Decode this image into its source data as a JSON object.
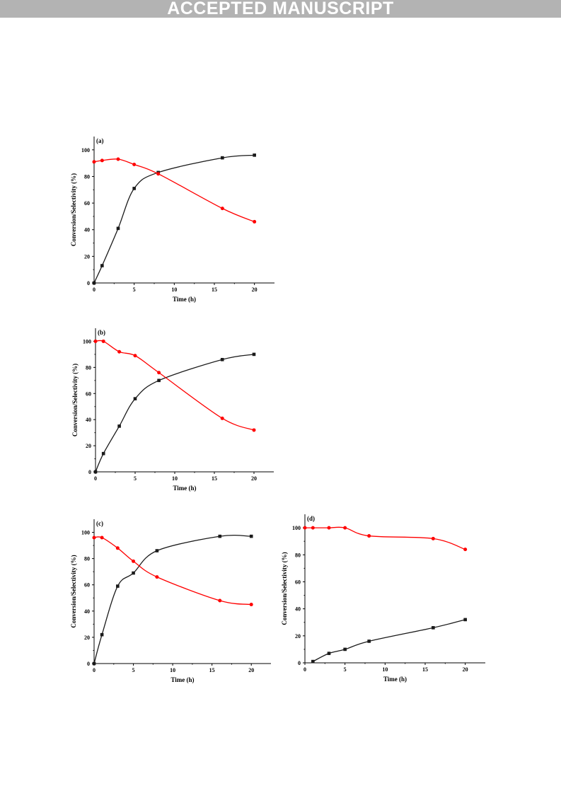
{
  "header": {
    "banner": "ACCEPTED MANUSCRIPT"
  },
  "colors": {
    "conversion": "#1a1a1a",
    "selectivity": "#ff0000",
    "banner_bg": "#b3b3b3"
  },
  "chart_data": [
    {
      "type": "line",
      "panel_label": "(a)",
      "xlabel": "Time (h)",
      "ylabel": "Conversion/Selectivity (%)",
      "xlim": [
        0,
        22.5
      ],
      "ylim": [
        0,
        110
      ],
      "xticks": [
        "0",
        "5",
        "10",
        "15",
        "20"
      ],
      "yticks": [
        "0",
        "20",
        "40",
        "60",
        "80",
        "100"
      ],
      "series": [
        {
          "x": [
            0,
            1,
            3,
            5,
            8,
            16,
            20
          ],
          "values": [
            0,
            13,
            41,
            71,
            83,
            94,
            96
          ],
          "marker": "square",
          "color": "#1a1a1a"
        },
        {
          "x": [
            0,
            1,
            3,
            5,
            8,
            16,
            20
          ],
          "values": [
            91,
            92,
            93,
            89,
            82,
            56,
            46
          ],
          "marker": "circle",
          "color": "#ff0000"
        }
      ]
    },
    {
      "type": "line",
      "panel_label": "(b)",
      "xlabel": "Time (h)",
      "ylabel": "Conversion/Selectivity (%)",
      "xlim": [
        0,
        22.5
      ],
      "ylim": [
        0,
        110
      ],
      "xticks": [
        "0",
        "5",
        "10",
        "15",
        "20"
      ],
      "yticks": [
        "0",
        "20",
        "40",
        "60",
        "80",
        "100"
      ],
      "series": [
        {
          "x": [
            0,
            1,
            3,
            5,
            8,
            16,
            20
          ],
          "values": [
            0,
            14,
            35,
            56,
            70,
            86,
            90
          ],
          "marker": "square",
          "color": "#1a1a1a"
        },
        {
          "x": [
            0,
            1,
            3,
            5,
            8,
            16,
            20
          ],
          "values": [
            100,
            100,
            92,
            89,
            76,
            41,
            32
          ],
          "marker": "circle",
          "color": "#ff0000"
        }
      ]
    },
    {
      "type": "line",
      "panel_label": "(c)",
      "xlabel": "Time (h)",
      "ylabel": "Conversion/Selectivity (%)",
      "xlim": [
        0,
        22.5
      ],
      "ylim": [
        0,
        110
      ],
      "xticks": [
        "0",
        "5",
        "10",
        "15",
        "20"
      ],
      "yticks": [
        "0",
        "20",
        "40",
        "60",
        "80",
        "100"
      ],
      "series": [
        {
          "x": [
            0,
            1,
            3,
            5,
            8,
            16,
            20
          ],
          "values": [
            0,
            22,
            59,
            69,
            86,
            97,
            97
          ],
          "marker": "square",
          "color": "#1a1a1a"
        },
        {
          "x": [
            0,
            1,
            3,
            5,
            8,
            16,
            20
          ],
          "values": [
            96,
            96,
            88,
            78,
            66,
            48,
            45
          ],
          "marker": "circle",
          "color": "#ff0000"
        }
      ]
    },
    {
      "type": "line",
      "panel_label": "(d)",
      "xlabel": "Time (h)",
      "ylabel": "Conversion/Selectivity (%)",
      "xlim": [
        0,
        22.5
      ],
      "ylim": [
        0,
        110
      ],
      "xticks": [
        "0",
        "5",
        "10",
        "15",
        "20"
      ],
      "yticks": [
        "0",
        "20",
        "40",
        "60",
        "80",
        "100"
      ],
      "series": [
        {
          "x": [
            1,
            3,
            5,
            8,
            16,
            20
          ],
          "values": [
            1,
            7,
            10,
            16,
            26,
            32
          ],
          "marker": "square",
          "color": "#1a1a1a"
        },
        {
          "x": [
            0,
            1,
            3,
            5,
            8,
            16,
            20
          ],
          "values": [
            100,
            100,
            100,
            100,
            94,
            92,
            84
          ],
          "marker": "circle",
          "color": "#ff0000"
        }
      ]
    }
  ]
}
